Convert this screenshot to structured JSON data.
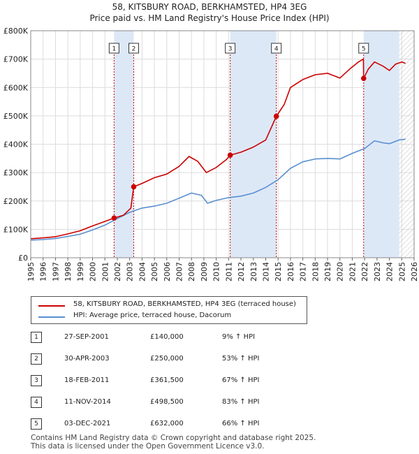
{
  "chart_data": {
    "type": "line",
    "title": "58, KITSBURY ROAD, BERKHAMSTED, HP4 3EG",
    "subtitle": "Price paid vs. HM Land Registry's House Price Index (HPI)",
    "xlabel": "",
    "ylabel": "",
    "xlim": [
      1995,
      2026
    ],
    "ylim": [
      0,
      800000
    ],
    "x_ticks": [
      "1995",
      "1996",
      "1997",
      "1998",
      "1999",
      "2000",
      "2001",
      "2002",
      "2003",
      "2004",
      "2005",
      "2006",
      "2007",
      "2008",
      "2009",
      "2010",
      "2011",
      "2012",
      "2013",
      "2014",
      "2015",
      "2016",
      "2017",
      "2018",
      "2019",
      "2020",
      "2021",
      "2022",
      "2023",
      "2024",
      "2025",
      "2026"
    ],
    "y_ticks": [
      {
        "value": 0,
        "label": "£0"
      },
      {
        "value": 100000,
        "label": "£100K"
      },
      {
        "value": 200000,
        "label": "£200K"
      },
      {
        "value": 300000,
        "label": "£300K"
      },
      {
        "value": 400000,
        "label": "£400K"
      },
      {
        "value": 500000,
        "label": "£500K"
      },
      {
        "value": 600000,
        "label": "£600K"
      },
      {
        "value": 700000,
        "label": "£700K"
      },
      {
        "value": 800000,
        "label": "£800K"
      }
    ],
    "shaded_spans": [
      [
        2001.74,
        2003.33
      ],
      [
        2011.13,
        2014.86
      ],
      [
        2021.92,
        2024.8
      ]
    ],
    "future_hatch_from": 2024.8,
    "series": [
      {
        "name": "58, KITSBURY ROAD, BERKHAMSTED, HP4 3EG (terraced house)",
        "color": "#cc0000",
        "points": [
          [
            1995,
            67000
          ],
          [
            1996,
            70000
          ],
          [
            1997,
            74000
          ],
          [
            1998,
            84000
          ],
          [
            1999,
            95000
          ],
          [
            2000,
            112000
          ],
          [
            2001,
            128000
          ],
          [
            2001.74,
            140000
          ],
          [
            2002.5,
            150000
          ],
          [
            2003.1,
            175000
          ],
          [
            2003.33,
            250000
          ],
          [
            2004,
            262000
          ],
          [
            2005,
            282000
          ],
          [
            2006,
            295000
          ],
          [
            2007,
            322000
          ],
          [
            2007.8,
            357000
          ],
          [
            2008.5,
            340000
          ],
          [
            2009.2,
            300000
          ],
          [
            2010,
            318000
          ],
          [
            2010.8,
            345000
          ],
          [
            2011.13,
            361500
          ],
          [
            2012,
            372000
          ],
          [
            2013,
            390000
          ],
          [
            2014,
            415000
          ],
          [
            2014.86,
            498500
          ],
          [
            2015.5,
            540000
          ],
          [
            2016,
            600000
          ],
          [
            2017,
            628000
          ],
          [
            2018,
            645000
          ],
          [
            2019,
            650000
          ],
          [
            2020,
            633000
          ],
          [
            2020.8,
            665000
          ],
          [
            2021.5,
            690000
          ],
          [
            2021.9,
            700000
          ],
          [
            2021.92,
            632000
          ],
          [
            2022.3,
            665000
          ],
          [
            2022.8,
            690000
          ],
          [
            2023.5,
            675000
          ],
          [
            2024,
            660000
          ],
          [
            2024.5,
            682000
          ],
          [
            2025,
            690000
          ],
          [
            2025.3,
            685000
          ]
        ]
      },
      {
        "name": "HPI: Average price, terraced house, Dacorum",
        "color": "#5a8fd0",
        "points": [
          [
            1995,
            62000
          ],
          [
            1996,
            64000
          ],
          [
            1997,
            68000
          ],
          [
            1998,
            75000
          ],
          [
            1999,
            83000
          ],
          [
            2000,
            98000
          ],
          [
            2001,
            115000
          ],
          [
            2002,
            138000
          ],
          [
            2003,
            160000
          ],
          [
            2004,
            175000
          ],
          [
            2005,
            182000
          ],
          [
            2006,
            192000
          ],
          [
            2007,
            210000
          ],
          [
            2008,
            228000
          ],
          [
            2008.8,
            220000
          ],
          [
            2009.3,
            192000
          ],
          [
            2010,
            202000
          ],
          [
            2011,
            212000
          ],
          [
            2012,
            217000
          ],
          [
            2013,
            228000
          ],
          [
            2014,
            248000
          ],
          [
            2015,
            275000
          ],
          [
            2016,
            315000
          ],
          [
            2017,
            338000
          ],
          [
            2018,
            348000
          ],
          [
            2019,
            350000
          ],
          [
            2020,
            348000
          ],
          [
            2021,
            368000
          ],
          [
            2022,
            385000
          ],
          [
            2022.8,
            412000
          ],
          [
            2023.5,
            405000
          ],
          [
            2024,
            402000
          ],
          [
            2024.8,
            415000
          ],
          [
            2025.3,
            418000
          ]
        ]
      }
    ],
    "sales": [
      {
        "id": "1",
        "x": 2001.74,
        "y": 140000
      },
      {
        "id": "2",
        "x": 2003.33,
        "y": 250000
      },
      {
        "id": "3",
        "x": 2011.13,
        "y": 361500
      },
      {
        "id": "4",
        "x": 2014.86,
        "y": 498500
      },
      {
        "id": "5",
        "x": 2021.92,
        "y": 632000
      }
    ]
  },
  "legend": {
    "price_label": "58, KITSBURY ROAD, BERKHAMSTED, HP4 3EG (terraced house)",
    "hpi_label": "HPI: Average price, terraced house, Dacorum",
    "price_color": "#cc0000",
    "hpi_color": "#5a8fd0"
  },
  "transactions": [
    {
      "num": "1",
      "date": "27-SEP-2001",
      "price": "£140,000",
      "hpi": "9% ↑ HPI"
    },
    {
      "num": "2",
      "date": "30-APR-2003",
      "price": "£250,000",
      "hpi": "53% ↑ HPI"
    },
    {
      "num": "3",
      "date": "18-FEB-2011",
      "price": "£361,500",
      "hpi": "67% ↑ HPI"
    },
    {
      "num": "4",
      "date": "11-NOV-2014",
      "price": "£498,500",
      "hpi": "83% ↑ HPI"
    },
    {
      "num": "5",
      "date": "03-DEC-2021",
      "price": "£632,000",
      "hpi": "66% ↑ HPI"
    }
  ],
  "footer": {
    "line1": "Contains HM Land Registry data © Crown copyright and database right 2025.",
    "line2": "This data is licensed under the Open Government Licence v3.0."
  }
}
